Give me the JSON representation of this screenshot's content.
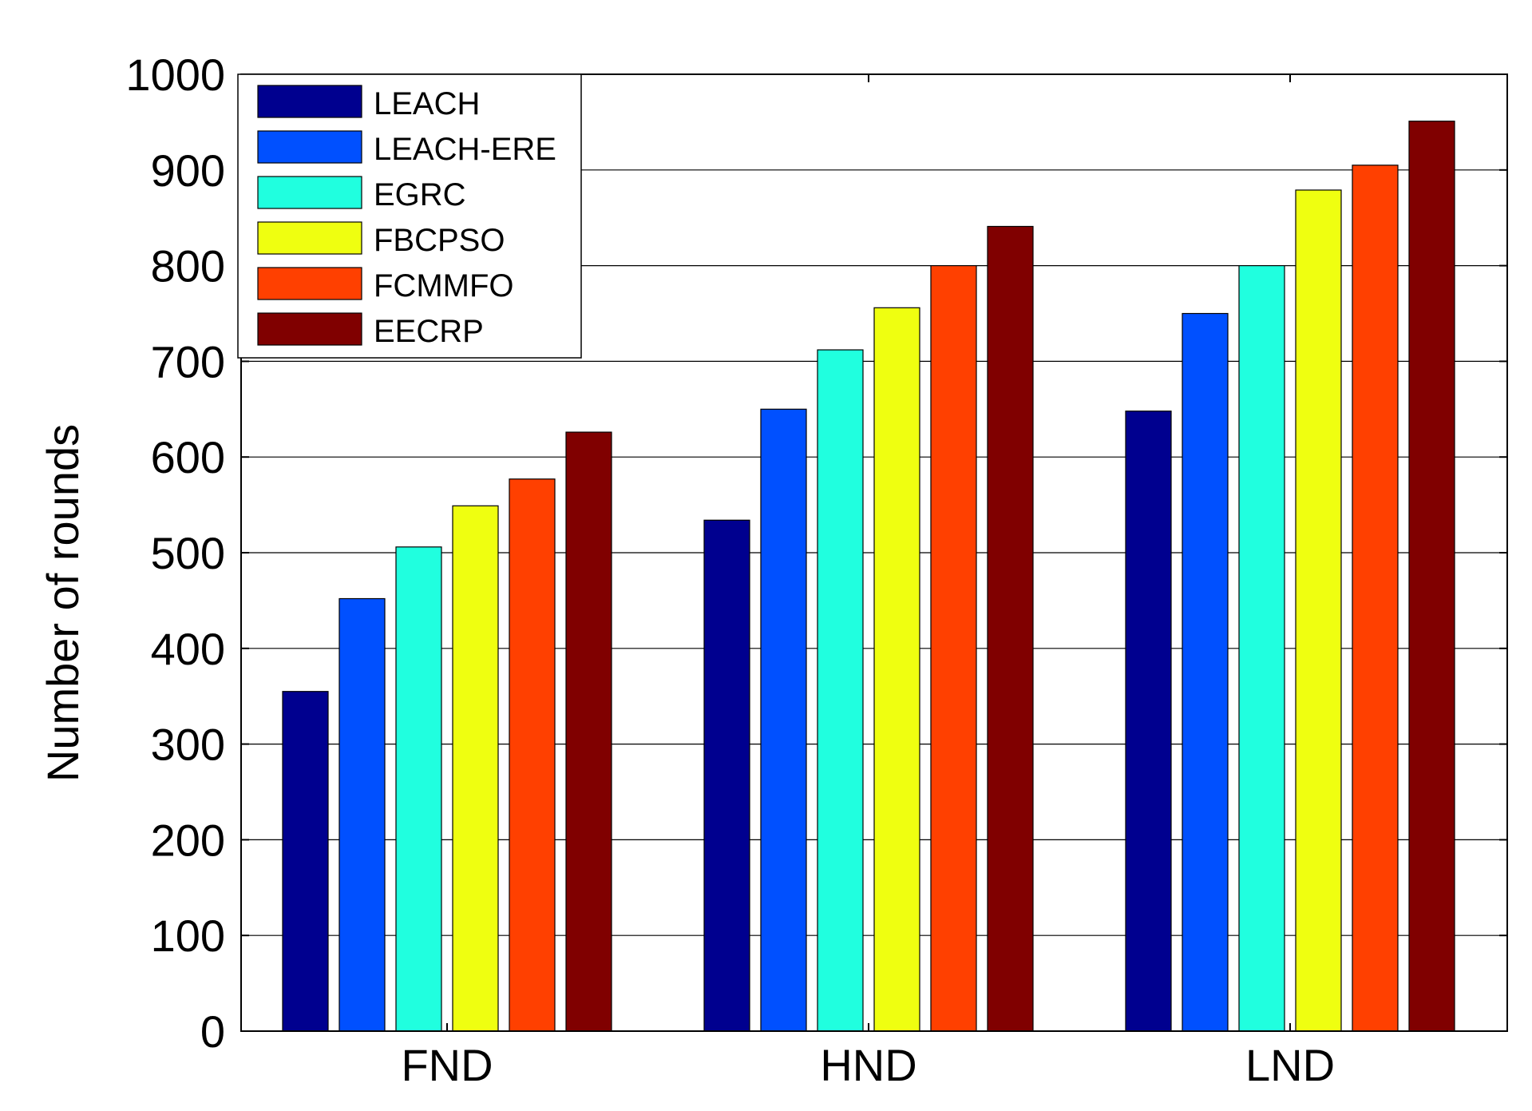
{
  "chart_data": {
    "type": "bar",
    "categories": [
      "FND",
      "HND",
      "LND"
    ],
    "series": [
      {
        "name": "LEACH",
        "color": "#00008F",
        "values": [
          355,
          534,
          648
        ]
      },
      {
        "name": "LEACH-ERE",
        "color": "#0050FF",
        "values": [
          452,
          650,
          750
        ]
      },
      {
        "name": "EGRC",
        "color": "#20FFDF",
        "values": [
          506,
          712,
          800
        ]
      },
      {
        "name": "FBCPSO",
        "color": "#EFFF10",
        "values": [
          549,
          756,
          879
        ]
      },
      {
        "name": "FCMMFO",
        "color": "#FF4000",
        "values": [
          577,
          800,
          905
        ]
      },
      {
        "name": "EECRP",
        "color": "#800000",
        "values": [
          626,
          841,
          951
        ]
      }
    ],
    "title": "",
    "xlabel": "",
    "ylabel": "Number of rounds",
    "ylim": [
      0,
      1000
    ],
    "yticks": [
      "0",
      "100",
      "200",
      "300",
      "400",
      "500",
      "600",
      "700",
      "800",
      "900",
      "1000"
    ],
    "grid": "y-major",
    "legend": "top-left"
  }
}
